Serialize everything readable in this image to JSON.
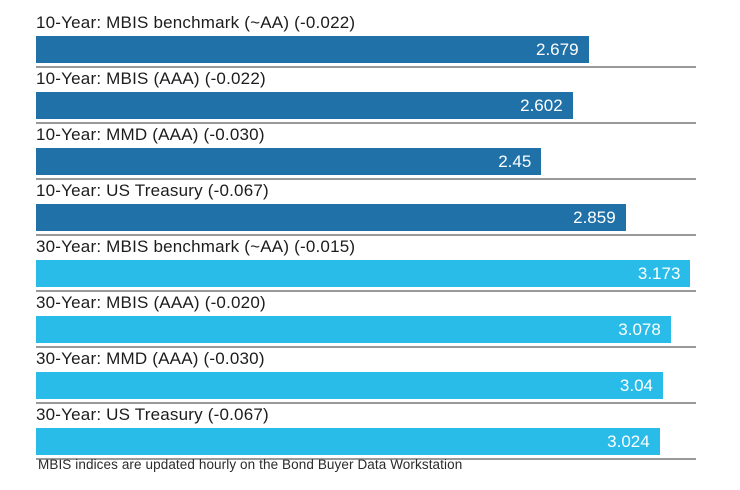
{
  "chart_data": {
    "type": "bar",
    "orientation": "horizontal",
    "xlim": [
      0,
      3.2
    ],
    "grid": false,
    "legend": "none",
    "categories": [
      "10-Year: MBIS benchmark (~AA) (-0.022)",
      "10-Year: MBIS (AAA) (-0.022)",
      "10-Year: MMD (AAA) (-0.030)",
      "10-Year: US Treasury (-0.067)",
      "30-Year: MBIS benchmark (~AA) (-0.015)",
      "30-Year: MBIS (AAA) (-0.020)",
      "30-Year: MMD (AAA) (-0.030)",
      "30-Year: US Treasury (-0.067)"
    ],
    "values": [
      2.679,
      2.602,
      2.45,
      2.859,
      3.173,
      3.078,
      3.04,
      3.024
    ],
    "bars": [
      {
        "label": "10-Year: MBIS benchmark (~AA) (-0.022)",
        "value": 2.679,
        "display_value": "2.679",
        "group": "10-year",
        "color": "#2171a9"
      },
      {
        "label": "10-Year: MBIS (AAA) (-0.022)",
        "value": 2.602,
        "display_value": "2.602",
        "group": "10-year",
        "color": "#2171a9"
      },
      {
        "label": "10-Year: MMD (AAA) (-0.030)",
        "value": 2.45,
        "display_value": "2.45",
        "group": "10-year",
        "color": "#2171a9"
      },
      {
        "label": "10-Year: US Treasury (-0.067)",
        "value": 2.859,
        "display_value": "2.859",
        "group": "10-year",
        "color": "#2171a9"
      },
      {
        "label": "30-Year: MBIS benchmark (~AA) (-0.015)",
        "value": 3.173,
        "display_value": "3.173",
        "group": "30-year",
        "color": "#29bce8"
      },
      {
        "label": "30-Year: MBIS (AAA) (-0.020)",
        "value": 3.078,
        "display_value": "3.078",
        "group": "30-year",
        "color": "#29bce8"
      },
      {
        "label": "30-Year: MMD (AAA) (-0.030)",
        "value": 3.04,
        "display_value": "3.04",
        "group": "30-year",
        "color": "#29bce8"
      },
      {
        "label": "30-Year: US Treasury (-0.067)",
        "value": 3.024,
        "display_value": "3.024",
        "group": "30-year",
        "color": "#29bce8"
      }
    ],
    "colors": {
      "ten_year_bar": "#2171a9",
      "thirty_year_bar": "#29bce8",
      "separator": "#999999",
      "value_text": "#ffffff",
      "label_text": "#1c1c1c"
    },
    "footer": "MBIS indices are updated hourly on the Bond Buyer Data Workstation"
  }
}
